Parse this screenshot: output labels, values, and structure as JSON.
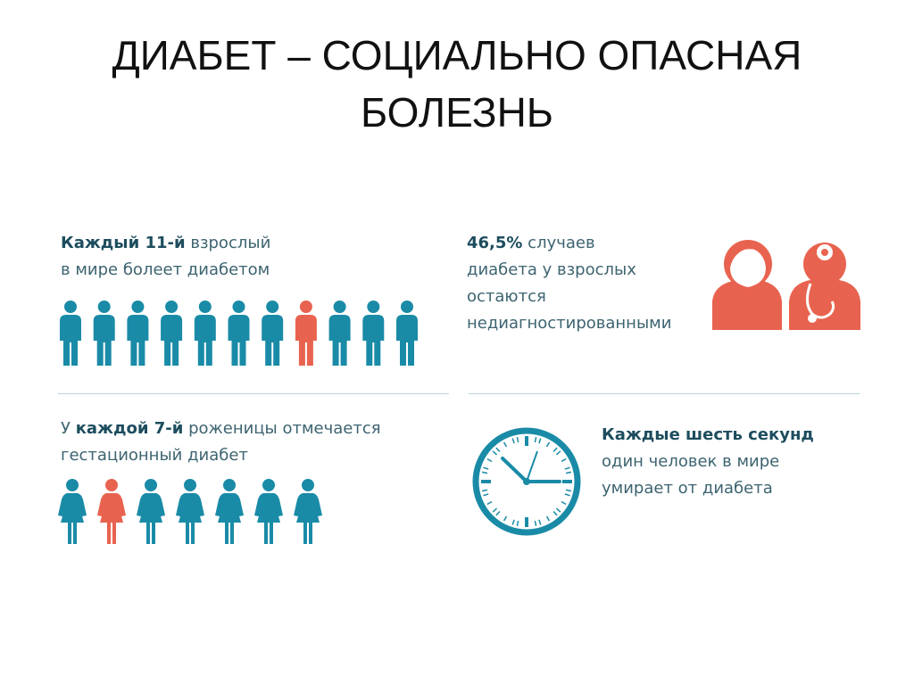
{
  "title": {
    "line1": "ДИАБЕТ – СОЦИАЛЬНО ОПАСНАЯ",
    "line2": "БОЛЕЗНЬ"
  },
  "colors": {
    "teal": "#1a8ba7",
    "red": "#e8634f",
    "text": "#3d6470",
    "bold_text": "#1d4d5e"
  },
  "adults": {
    "bold": "Каждый 11-й",
    "rest": " взрослый",
    "line2": "в мире болеет диабетом",
    "figure_count": 11,
    "highlighted_index": 7,
    "icon": "man-icon"
  },
  "undiagnosed": {
    "bold": "46,5%",
    "rest": " случаев",
    "line2": "диабета у взрослых",
    "line3": "остаются",
    "line4": "недиагностированными",
    "icons": [
      "patient-icon",
      "doctor-icon"
    ]
  },
  "pregnant": {
    "pre": "У ",
    "bold": "каждой 7-й",
    "rest": " роженицы отмечается",
    "line2": "гестационный диабет",
    "figure_count": 7,
    "highlighted_index": 1,
    "icon": "woman-icon"
  },
  "deaths": {
    "bold": "Каждые шесть секунд",
    "line2": "один человек в мире",
    "line3": "умирает от диабета",
    "icon": "clock-icon"
  }
}
